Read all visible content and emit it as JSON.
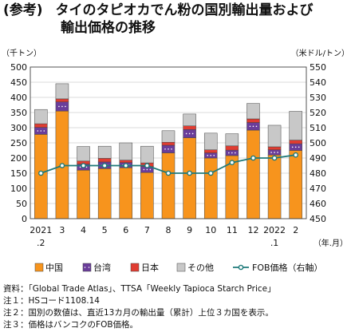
{
  "header": {
    "tag": "(参考)",
    "title_line1": "タイのタピオカでん粉の国別輸出量および",
    "title_line2": "輸出価格の推移"
  },
  "notes": [
    "資料：「Global Trade Atlas」、TTSA「Weekly Tapioca Starch Price」",
    "注１：HSコード1108.14",
    "注２：国別の数値は、直近13カ月の輸出量（累計）上位３カ国を表示。",
    "注３：価格はバンコクのFOB価格。"
  ],
  "chart_data": {
    "type": "bar",
    "y_left_label": "（千トン）",
    "y_right_label": "（米ドル/トン）",
    "x_unit_label": "（年.月）",
    "categories": [
      "2021.2",
      "3",
      "4",
      "5",
      "6",
      "7",
      "8",
      "9",
      "10",
      "11",
      "12",
      "2022.1",
      "2"
    ],
    "category_ticks": [
      {
        "top": "2021",
        "bottom": ".2"
      },
      {
        "top": "3",
        "bottom": ""
      },
      {
        "top": "4",
        "bottom": ""
      },
      {
        "top": "5",
        "bottom": ""
      },
      {
        "top": "6",
        "bottom": ""
      },
      {
        "top": "7",
        "bottom": ""
      },
      {
        "top": "8",
        "bottom": ""
      },
      {
        "top": "9",
        "bottom": ""
      },
      {
        "top": "10",
        "bottom": ""
      },
      {
        "top": "11",
        "bottom": ""
      },
      {
        "top": "12",
        "bottom": ""
      },
      {
        "top": "2022",
        "bottom": ".1"
      },
      {
        "top": "2",
        "bottom": ""
      }
    ],
    "ylim_left": [
      0,
      500
    ],
    "yticks_left": [
      0,
      50,
      100,
      150,
      200,
      250,
      300,
      350,
      400,
      450,
      500
    ],
    "ylim_right": [
      450,
      550
    ],
    "yticks_right": [
      450,
      460,
      470,
      480,
      490,
      500,
      510,
      520,
      530,
      540,
      550
    ],
    "stacked_series": [
      {
        "name": "中国",
        "color": "#f7941d",
        "values": [
          278,
          355,
          160,
          165,
          168,
          152,
          217,
          267,
          200,
          208,
          292,
          210,
          225
        ]
      },
      {
        "name": "台湾",
        "color": "#6a3d9a",
        "values": [
          23,
          30,
          20,
          22,
          17,
          20,
          25,
          27,
          17,
          18,
          25,
          17,
          22
        ]
      },
      {
        "name": "日本",
        "color": "#e03c31",
        "values": [
          12,
          10,
          10,
          12,
          8,
          12,
          10,
          12,
          10,
          14,
          12,
          10,
          12
        ]
      },
      {
        "name": "その他",
        "color": "#c8c8c8",
        "values": [
          47,
          50,
          48,
          40,
          57,
          55,
          38,
          39,
          55,
          40,
          51,
          71,
          95
        ]
      }
    ],
    "line_series": {
      "name": "FOB価格（右軸）",
      "color": "#1e7a7a",
      "axis": "right",
      "values": [
        480,
        485,
        485,
        485,
        485,
        485,
        480,
        480,
        480,
        487,
        490,
        490,
        492
      ]
    },
    "grid": true,
    "legend_position": "bottom"
  }
}
